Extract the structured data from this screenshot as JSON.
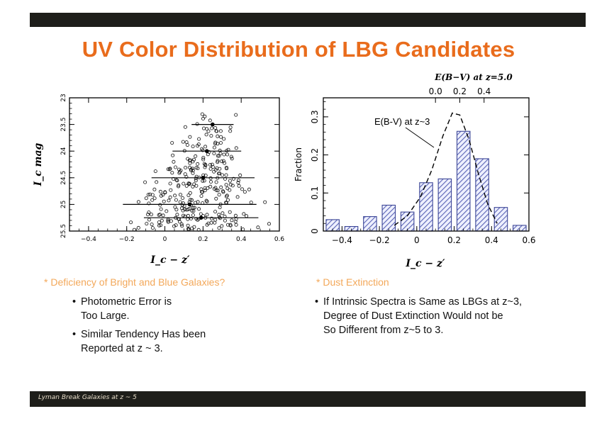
{
  "slide": {
    "title": "UV Color Distribution of LBG Candidates",
    "footer": "Lyman Break Galaxies at z ~ 5"
  },
  "chart_data": [
    {
      "type": "scatter",
      "xlabel": "I_c − z′",
      "ylabel": "I_c mag",
      "xlim": [
        -0.5,
        0.6
      ],
      "ylim": [
        25.5,
        23
      ],
      "y_inverted": true,
      "x_ticks": [
        "−0.4",
        "−0.2",
        "0",
        "0.2",
        "0.4",
        "0.6"
      ],
      "y_ticks": [
        "23",
        "23.5",
        "24",
        "24.5",
        "25",
        "25.5"
      ],
      "binned_means": [
        {
          "y": 23.5,
          "x": 0.25,
          "xerr": 0.11
        },
        {
          "y": 24.0,
          "x": 0.22,
          "xerr": 0.18
        },
        {
          "y": 24.5,
          "x": 0.2,
          "xerr": 0.27
        },
        {
          "y": 25.0,
          "x": 0.13,
          "xerr": 0.35
        },
        {
          "y": 25.25,
          "x": 0.19,
          "xerr": 0.3
        }
      ]
    },
    {
      "type": "bar",
      "xlabel": "I_c − z′",
      "ylabel": "Fraction",
      "top_axis_label": "E(B−V) at z=5.0",
      "top_ticks": [
        "0.0",
        "0.2",
        "0.4"
      ],
      "top_tick_positions": [
        0.1,
        0.23,
        0.36
      ],
      "xlim": [
        -0.5,
        0.6
      ],
      "ylim": [
        0,
        0.35
      ],
      "x_ticks": [
        "−0.4",
        "−0.2",
        "0",
        "0.2",
        "0.4",
        "0.6"
      ],
      "y_ticks": [
        "0",
        "0.1",
        "0.2",
        "0.3"
      ],
      "bin_width": 0.1,
      "bins": [
        -0.45,
        -0.35,
        -0.25,
        -0.15,
        -0.05,
        0.05,
        0.15,
        0.25,
        0.35,
        0.45,
        0.55
      ],
      "values": [
        0.03,
        0.012,
        0.038,
        0.068,
        0.05,
        0.127,
        0.137,
        0.262,
        0.19,
        0.062,
        0.015
      ],
      "model_curve": {
        "name": "E(B-V) at z~3",
        "x": [
          -0.12,
          -0.05,
          0.02,
          0.08,
          0.14,
          0.19,
          0.23,
          0.28,
          0.33,
          0.38,
          0.43
        ],
        "y": [
          0.015,
          0.04,
          0.09,
          0.16,
          0.25,
          0.31,
          0.305,
          0.24,
          0.15,
          0.07,
          0.02
        ]
      }
    }
  ],
  "bullets": {
    "left_heading": "* Deficiency of Bright and Blue Galaxies?",
    "left_items": [
      [
        "Photometric Error is",
        "Too Large."
      ],
      [
        "Similar Tendency Has been",
        "Reported at z ~ 3."
      ]
    ],
    "right_heading": "* Dust Extinction",
    "right_items": [
      [
        "If Intrinsic Spectra is Same as LBGs at z~3,",
        "Degree of Dust Extinction Would not be",
        "So Different from z~5 to 3."
      ]
    ]
  },
  "colors": {
    "title": "#e96c1c",
    "bullet_heading": "#f3a85a",
    "bar_hatch": "#5a64b4"
  }
}
